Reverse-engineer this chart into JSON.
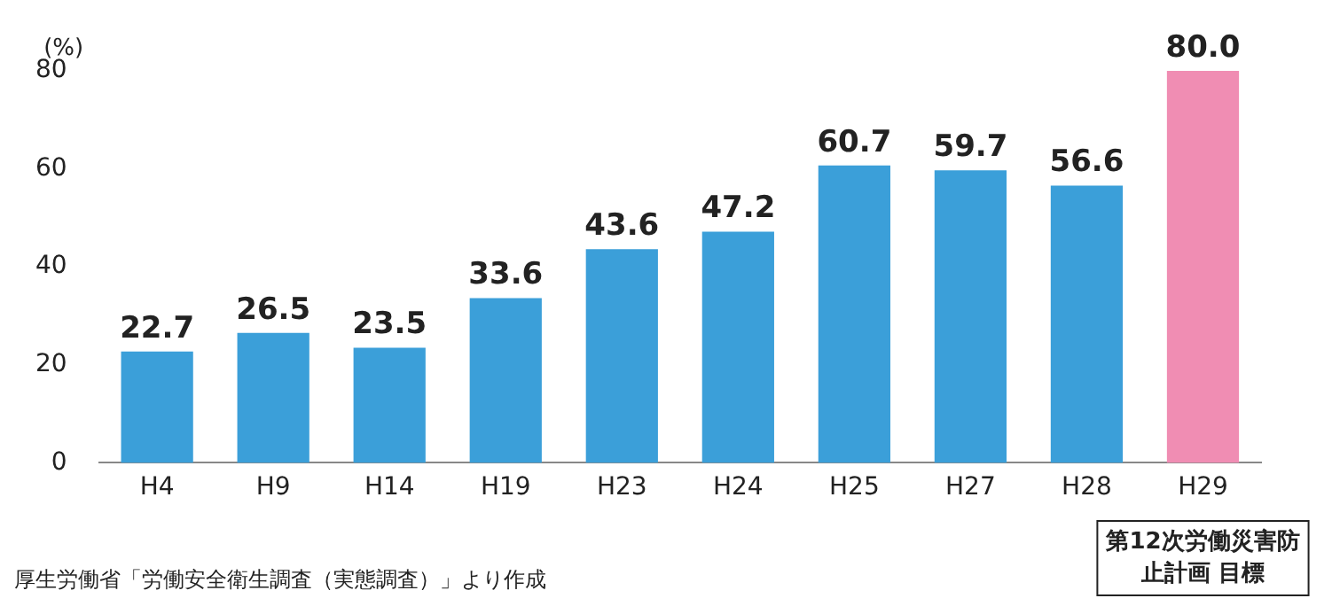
{
  "chart_data": {
    "type": "bar",
    "ylabel": "(%)",
    "categories": [
      "H4",
      "H9",
      "H14",
      "H19",
      "H23",
      "H24",
      "H25",
      "H27",
      "H28",
      "H29"
    ],
    "values": [
      22.7,
      26.5,
      23.5,
      33.6,
      43.6,
      47.2,
      60.7,
      59.7,
      56.6,
      80.0
    ],
    "colors": [
      "#3b9fd9",
      "#3b9fd9",
      "#3b9fd9",
      "#3b9fd9",
      "#3b9fd9",
      "#3b9fd9",
      "#3b9fd9",
      "#3b9fd9",
      "#3b9fd9",
      "#f08db3"
    ],
    "value_labels": [
      "22.7",
      "26.5",
      "23.5",
      "33.6",
      "43.6",
      "47.2",
      "60.7",
      "59.7",
      "56.6",
      "80.0"
    ],
    "ylim": [
      0,
      80
    ],
    "yticks": [
      0,
      20,
      40,
      60,
      80
    ],
    "grid": false,
    "legend": false,
    "annotations": [
      "第12次労働災害防止計画 目標",
      "厚生労働省「労働安全衛生調査（実態調査）」より作成"
    ]
  }
}
